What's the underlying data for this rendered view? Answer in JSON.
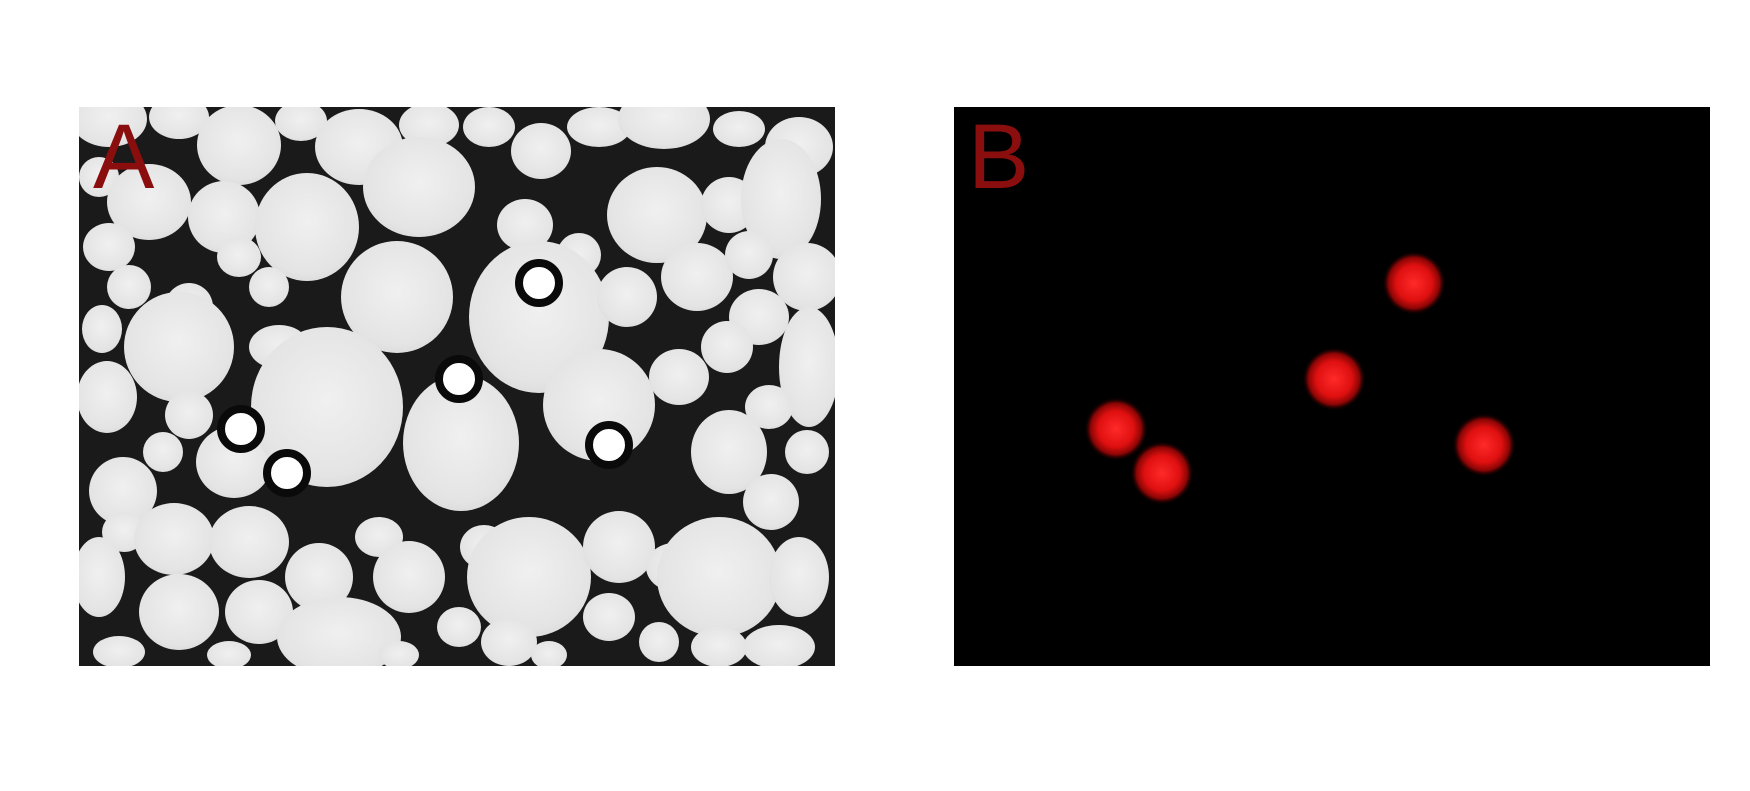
{
  "figure": {
    "panels": [
      {
        "id": "A",
        "label": "A",
        "kind": "brightfield-micrograph",
        "subject": "foam-of-droplets-with-five-encapsulated-beads",
        "background_color": "#f2f2f2"
      },
      {
        "id": "B",
        "label": "B",
        "kind": "fluorescence-micrograph",
        "subject": "five-red-fluorescent-beads",
        "background_color": "#000000"
      }
    ],
    "label_color": "#8b0e0e",
    "bead_glow_color": "#ff1a1a",
    "bead_count": 5
  }
}
